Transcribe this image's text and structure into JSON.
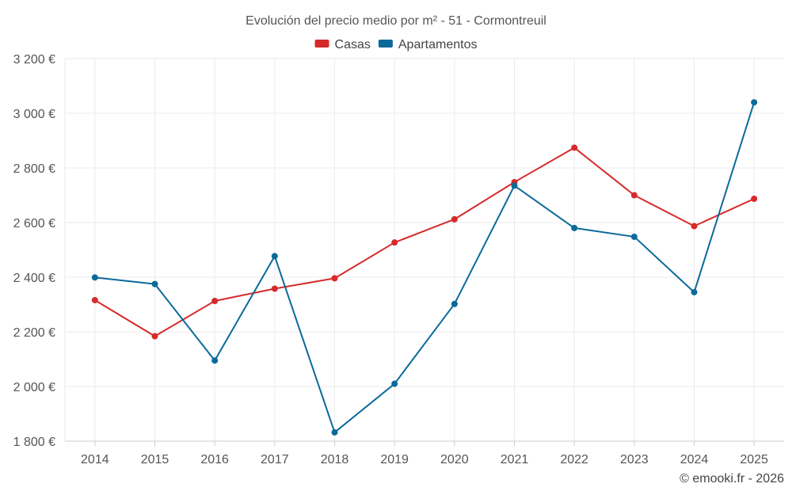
{
  "chart_data": {
    "type": "line",
    "title": "Evolución del precio medio por m² - 51 - Cormontreuil",
    "categories": [
      "2014",
      "2015",
      "2016",
      "2017",
      "2018",
      "2019",
      "2020",
      "2021",
      "2022",
      "2023",
      "2024",
      "2025"
    ],
    "series": [
      {
        "name": "Casas",
        "color": "#d62a2a",
        "values": [
          2316,
          2184,
          2313,
          2358,
          2396,
          2527,
          2612,
          2748,
          2874,
          2700,
          2587,
          2687
        ]
      },
      {
        "name": "Apartamentos",
        "color": "#0b6a9a",
        "values": [
          2399,
          2375,
          2095,
          2477,
          1832,
          2010,
          2302,
          2735,
          2580,
          2548,
          2345,
          3040
        ]
      }
    ],
    "ylim": [
      1800,
      3200
    ],
    "yticks": [
      1800,
      2000,
      2200,
      2400,
      2600,
      2800,
      3000,
      3200
    ],
    "ytick_labels": [
      "1 800 €",
      "2 000 €",
      "2 200 €",
      "2 400 €",
      "2 600 €",
      "2 800 €",
      "3 000 €",
      "3 200 €"
    ],
    "grid": true,
    "legend_position": "top-center",
    "credit": "© emooki.fr - 2026"
  }
}
